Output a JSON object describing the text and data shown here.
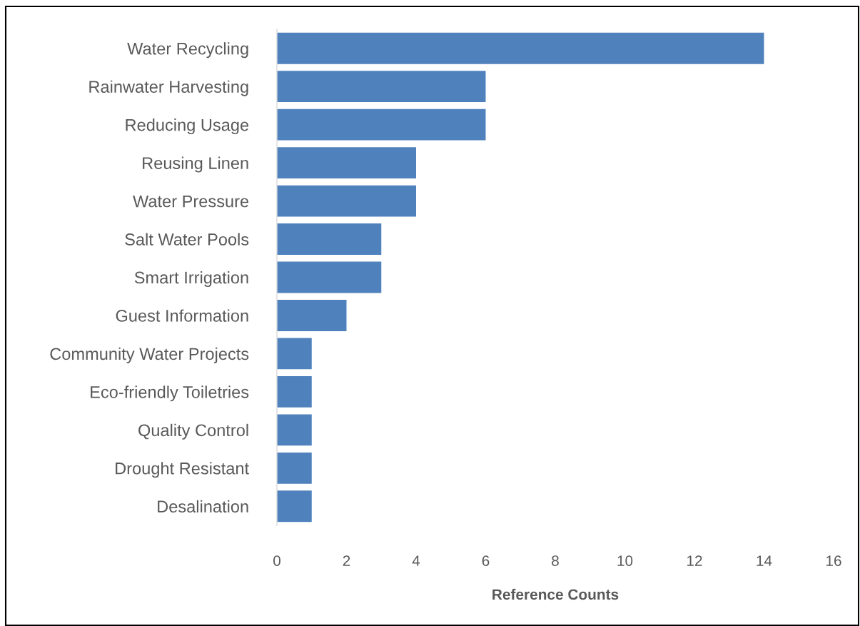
{
  "chart_data": {
    "type": "bar",
    "orientation": "horizontal",
    "categories": [
      "Water Recycling",
      "Rainwater Harvesting",
      "Reducing Usage",
      "Reusing Linen",
      "Water Pressure",
      "Salt Water Pools",
      "Smart Irrigation",
      "Guest Information",
      "Community Water Projects",
      "Eco-friendly Toiletries",
      "Quality Control",
      "Drought Resistant",
      "Desalination"
    ],
    "values": [
      14,
      6,
      6,
      4,
      4,
      3,
      3,
      2,
      1,
      1,
      1,
      1,
      1
    ],
    "color": "#4f81bd",
    "xlabel": "Reference Counts",
    "xlim": [
      0,
      16
    ],
    "xticks": [
      0,
      2,
      4,
      6,
      8,
      10,
      12,
      14,
      16
    ],
    "grid": false
  }
}
